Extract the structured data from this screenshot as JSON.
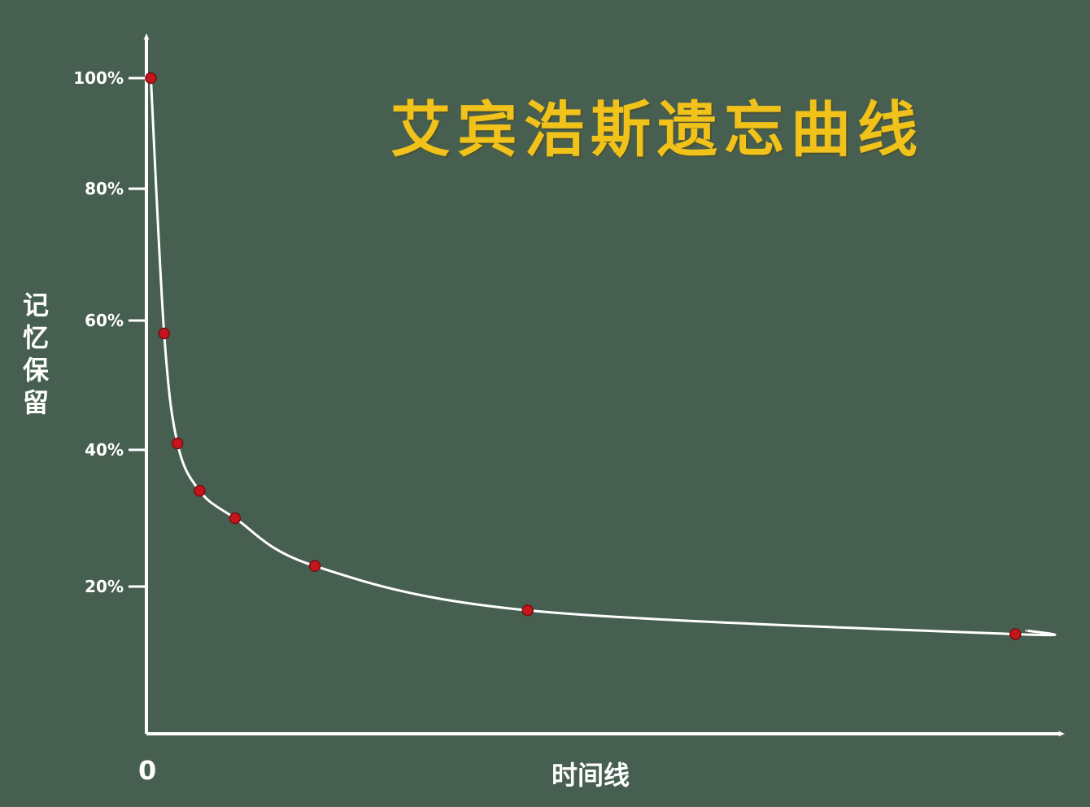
{
  "chart_data": {
    "type": "line",
    "title": "艾宾浩斯遗忘曲线",
    "ylabel": "记忆保留",
    "xlabel": "时间线",
    "origin_label": "0",
    "ylim": [
      0,
      100
    ],
    "xlim": [
      0,
      100
    ],
    "yticks": [
      {
        "value": 100,
        "label": "100%"
      },
      {
        "value": 80,
        "label": "80%"
      },
      {
        "value": 60,
        "label": "60%"
      },
      {
        "value": 40,
        "label": "40%"
      },
      {
        "value": 20,
        "label": "20%"
      }
    ],
    "series": [
      {
        "points": [
          {
            "x": 0.5,
            "y": 100
          },
          {
            "x": 2,
            "y": 58
          },
          {
            "x": 3.5,
            "y": 41
          },
          {
            "x": 6,
            "y": 34
          },
          {
            "x": 10,
            "y": 30
          },
          {
            "x": 19,
            "y": 23
          },
          {
            "x": 43,
            "y": 16.5
          },
          {
            "x": 98,
            "y": 13
          }
        ]
      }
    ],
    "grid": false,
    "colors": {
      "background": "#465f50",
      "axis": "#ffffff",
      "curve": "#ffffff",
      "point": "#c4161c",
      "title": "#f0c21a"
    }
  }
}
